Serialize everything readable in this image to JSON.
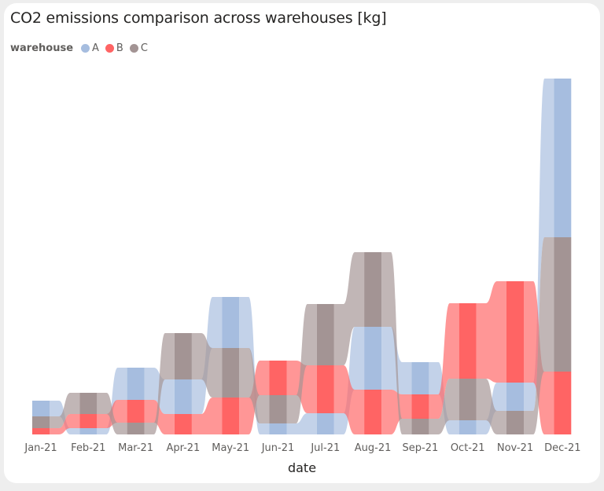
{
  "chart_data": {
    "type": "ribbon",
    "title": "CO2 emissions comparison across warehouses [kg]",
    "xlabel": "date",
    "ylabel": "",
    "legend": {
      "title": "warehouse",
      "placement": "top-left"
    },
    "categories": [
      "Jan-21",
      "Feb-21",
      "Mar-21",
      "Apr-21",
      "May-21",
      "Jun-21",
      "Jul-21",
      "Aug-21",
      "Sep-21",
      "Oct-21",
      "Nov-21",
      "Dec-21"
    ],
    "series": [
      {
        "name": "A",
        "color": "#a6bddf",
        "values": [
          20,
          8,
          41,
          44,
          65,
          14,
          27,
          80,
          41,
          18,
          36,
          202
        ]
      },
      {
        "name": "B",
        "color": "#ff6464",
        "values": [
          8,
          18,
          29,
          26,
          47,
          44,
          61,
          57,
          31,
          96,
          129,
          80
        ]
      },
      {
        "name": "C",
        "color": "#a39494",
        "values": [
          15,
          27,
          15,
          59,
          63,
          36,
          78,
          95,
          20,
          53,
          30,
          171
        ]
      }
    ],
    "grid": false,
    "y_axis_visible": false
  }
}
